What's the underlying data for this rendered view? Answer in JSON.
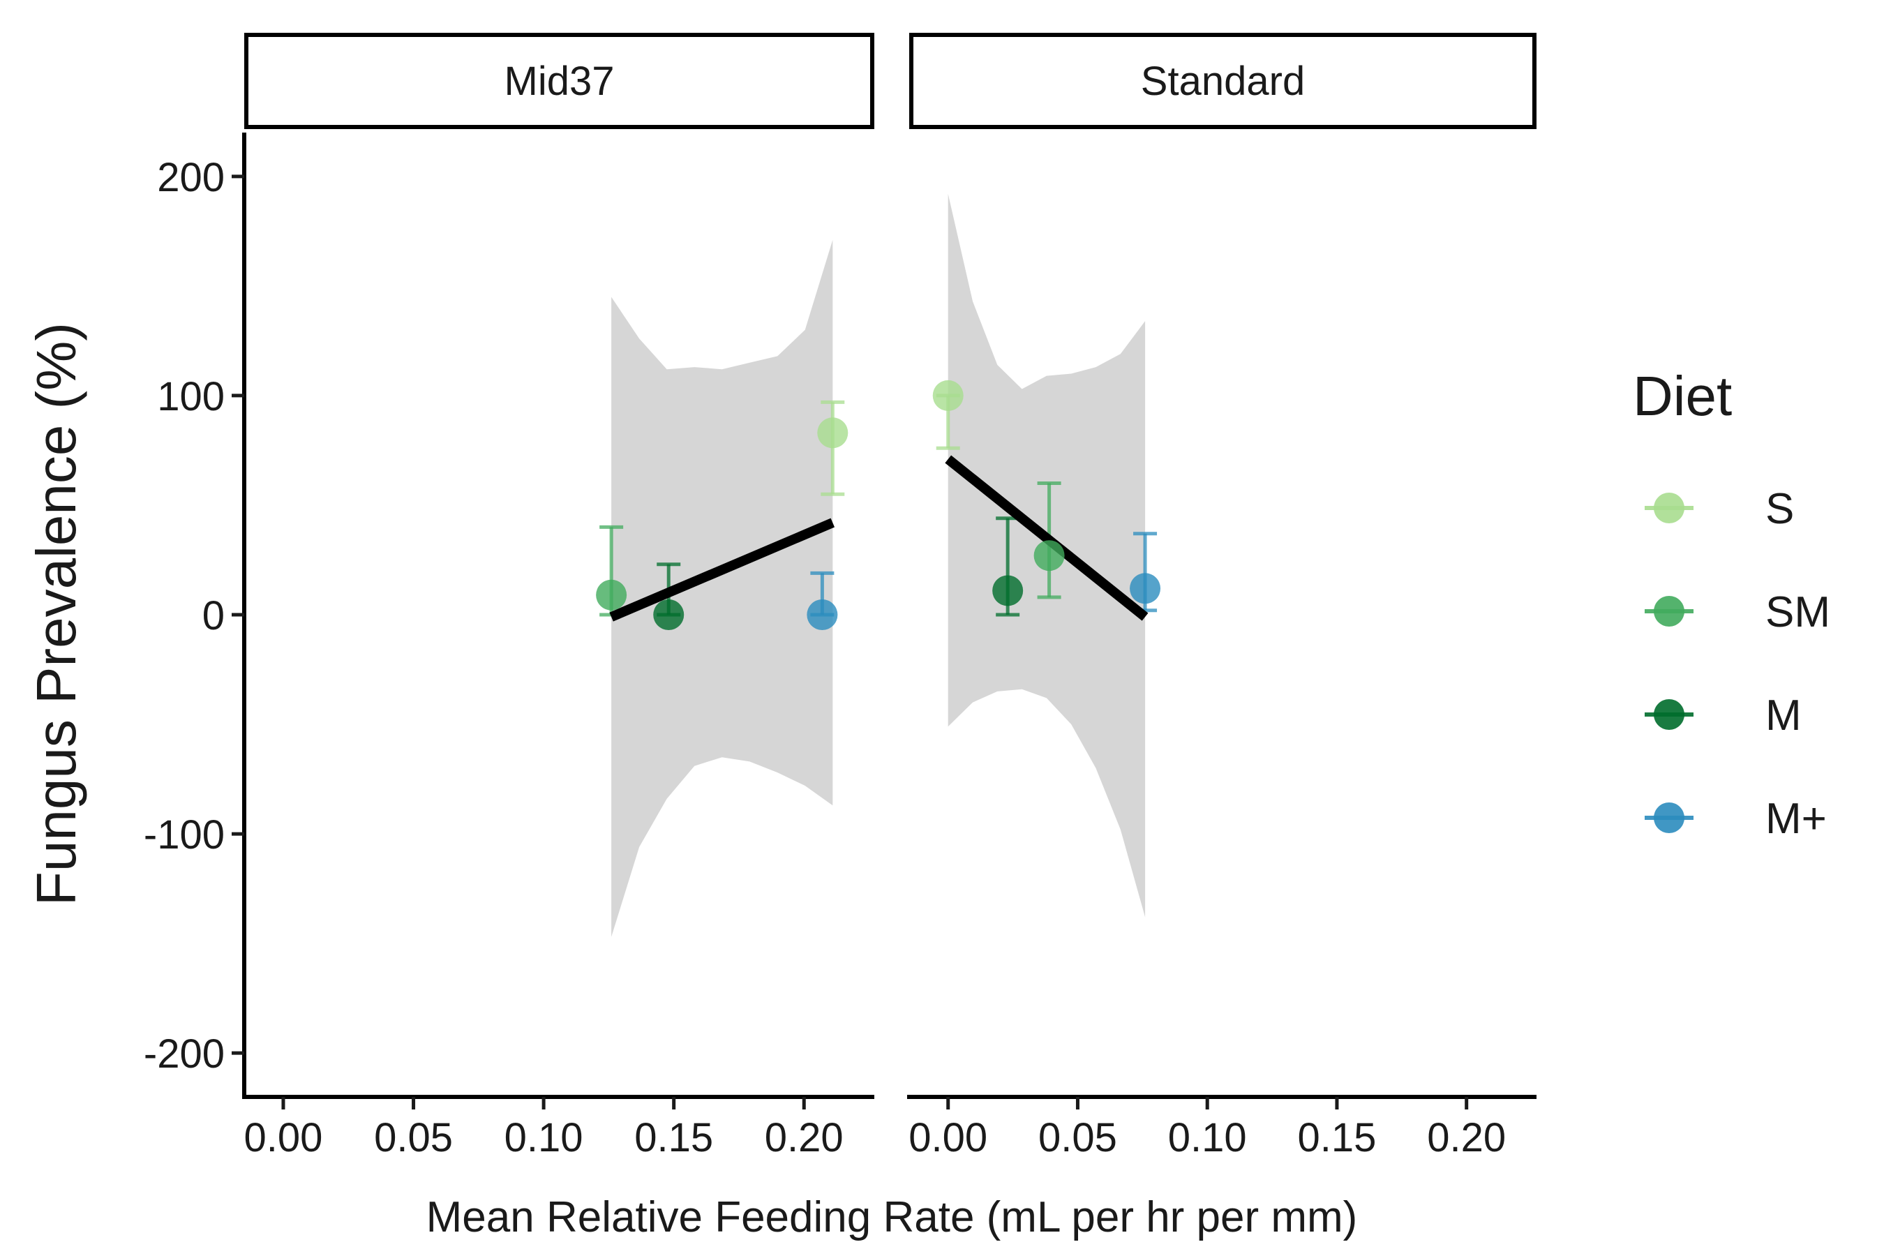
{
  "chart_data": {
    "type": "scatter",
    "xlabel": "Mean Relative Feeding Rate (mL per hr per mm)",
    "ylabel": "Fungus Prevalence (%)",
    "xlim": [
      -0.015,
      0.227
    ],
    "ylim": [
      -220,
      220
    ],
    "x_ticks": [
      0.0,
      0.05,
      0.1,
      0.15,
      0.2
    ],
    "x_tick_labels": [
      "0.00",
      "0.05",
      "0.10",
      "0.15",
      "0.20"
    ],
    "y_ticks": [
      200,
      100,
      0,
      -100,
      -200
    ],
    "y_tick_labels": [
      "200",
      "100",
      "0",
      "-100",
      "-200"
    ],
    "grid": false,
    "legend": {
      "title": "Diet",
      "placement": "right",
      "entries": [
        {
          "label": "S",
          "color": "#A8DD8F"
        },
        {
          "label": "SM",
          "color": "#41AB5D"
        },
        {
          "label": "M",
          "color": "#006D2C"
        },
        {
          "label": "M+",
          "color": "#2B8CBE"
        }
      ]
    },
    "panels": [
      {
        "strip": "Mid37",
        "points": [
          {
            "diet": "SM",
            "x": 0.126,
            "y": 9,
            "ymin": 0,
            "ymax": 40
          },
          {
            "diet": "M",
            "x": 0.148,
            "y": 0,
            "ymin": 0,
            "ymax": 23
          },
          {
            "diet": "S",
            "x": 0.211,
            "y": 83,
            "ymin": 55,
            "ymax": 97
          },
          {
            "diet": "M+",
            "x": 0.207,
            "y": 0,
            "ymin": 0,
            "ymax": 19
          }
        ],
        "fit": {
          "x": [
            0.126,
            0.211
          ],
          "y": [
            -1,
            42
          ],
          "ribbon": {
            "x": [
              0.126,
              0.1367,
              0.1473,
              0.1579,
              0.1685,
              0.1791,
              0.1898,
              0.2004,
              0.211
            ],
            "upper": [
              145,
              126,
              112,
              113,
              112,
              115,
              118,
              130,
              171
            ],
            "lower": [
              -147,
              -106,
              -84,
              -69,
              -65,
              -67,
              -72,
              -78,
              -87
            ]
          }
        }
      },
      {
        "strip": "Standard",
        "points": [
          {
            "diet": "S",
            "x": 0.0,
            "y": 100,
            "ymin": 76,
            "ymax": 100
          },
          {
            "diet": "M",
            "x": 0.023,
            "y": 11,
            "ymin": 0,
            "ymax": 44
          },
          {
            "diet": "SM",
            "x": 0.039,
            "y": 27,
            "ymin": 8,
            "ymax": 60
          },
          {
            "diet": "M+",
            "x": 0.076,
            "y": 12,
            "ymin": 2,
            "ymax": 37
          }
        ],
        "fit": {
          "x": [
            0.0,
            0.076
          ],
          "y": [
            71,
            -1
          ],
          "ribbon": {
            "x": [
              0.0,
              0.0095,
              0.019,
              0.0285,
              0.038,
              0.0475,
              0.057,
              0.0665,
              0.076
            ],
            "upper": [
              192,
              143,
              114,
              103,
              109,
              110,
              113,
              119,
              134
            ],
            "lower": [
              -51,
              -40,
              -35,
              -34,
              -38,
              -50,
              -70,
              -98,
              -138
            ]
          }
        }
      }
    ]
  }
}
